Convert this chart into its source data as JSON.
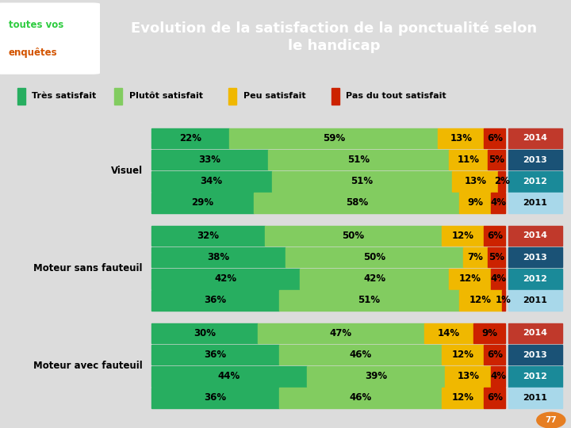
{
  "title": "Evolution de la satisfaction de la ponctualité selon\nle handicap",
  "header_bg": "#D35400",
  "bg_color": "#DCDCDC",
  "logo_text1": "toutes vos",
  "logo_text2": "enquêtes",
  "logo_color1": "#2ECC40",
  "logo_color2": "#D35400",
  "colors": {
    "tres": "#27AE60",
    "plutot": "#82CC60",
    "peu": "#F0B800",
    "pas": "#CC2200"
  },
  "legend_labels": [
    "Très satisfait",
    "Plutôt satisfait",
    "Peu satisfait",
    "Pas du tout satisfait"
  ],
  "year_colors": {
    "2014": "#C0392B",
    "2013": "#1A5276",
    "2012": "#1A8A99",
    "2011": "#A8D8EA"
  },
  "year_text_colors": {
    "2014": "white",
    "2013": "white",
    "2012": "white",
    "2011": "black"
  },
  "groups": [
    {
      "label": "Visuel",
      "rows": [
        {
          "year": "2014",
          "tres": 22,
          "plutot": 59,
          "peu": 13,
          "pas": 6
        },
        {
          "year": "2013",
          "tres": 33,
          "plutot": 51,
          "peu": 11,
          "pas": 5
        },
        {
          "year": "2012",
          "tres": 34,
          "plutot": 51,
          "peu": 13,
          "pas": 2
        },
        {
          "year": "2011",
          "tres": 29,
          "plutot": 58,
          "peu": 9,
          "pas": 4
        }
      ]
    },
    {
      "label": "Moteur sans fauteuil",
      "rows": [
        {
          "year": "2014",
          "tres": 32,
          "plutot": 50,
          "peu": 12,
          "pas": 6
        },
        {
          "year": "2013",
          "tres": 38,
          "plutot": 50,
          "peu": 7,
          "pas": 5
        },
        {
          "year": "2012",
          "tres": 42,
          "plutot": 42,
          "peu": 12,
          "pas": 4
        },
        {
          "year": "2011",
          "tres": 36,
          "plutot": 51,
          "peu": 12,
          "pas": 1
        }
      ]
    },
    {
      "label": "Moteur avec fauteuil",
      "rows": [
        {
          "year": "2014",
          "tres": 30,
          "plutot": 47,
          "peu": 14,
          "pas": 9
        },
        {
          "year": "2013",
          "tres": 36,
          "plutot": 46,
          "peu": 12,
          "pas": 6
        },
        {
          "year": "2012",
          "tres": 44,
          "plutot": 39,
          "peu": 13,
          "pas": 4
        },
        {
          "year": "2011",
          "tres": 36,
          "plutot": 46,
          "peu": 12,
          "pas": 6
        }
      ]
    }
  ]
}
